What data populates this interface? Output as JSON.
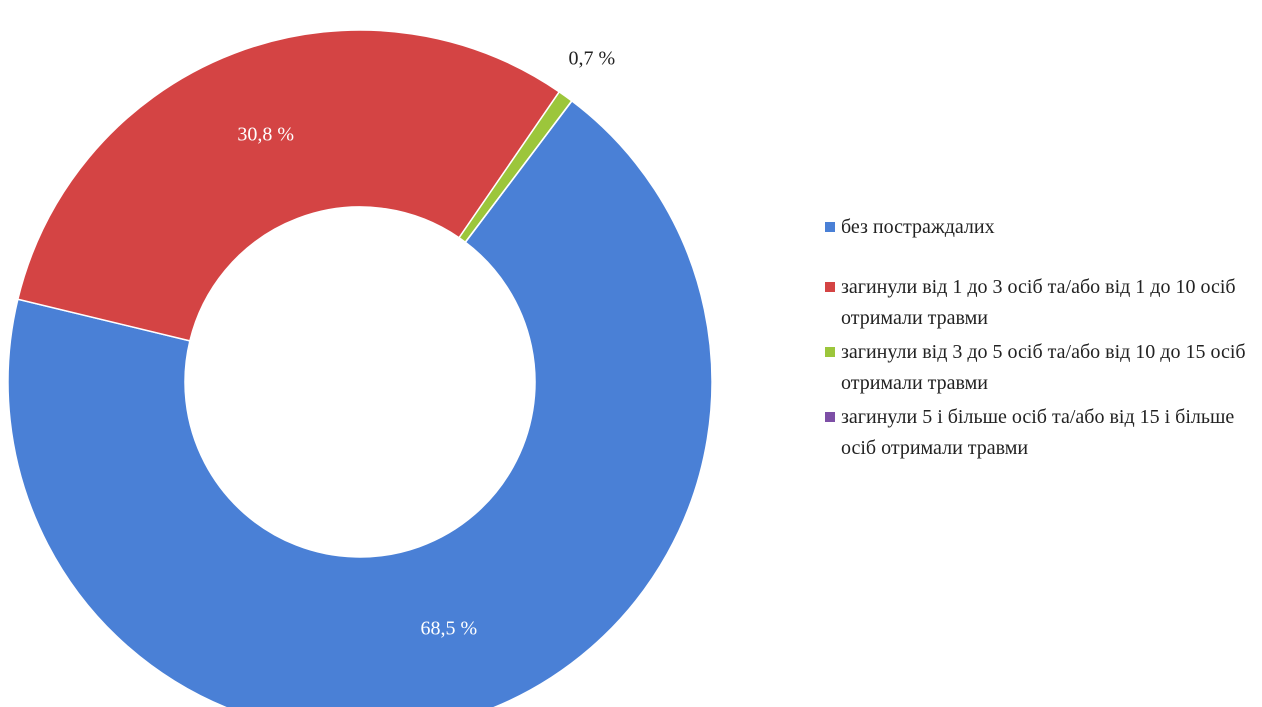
{
  "chart_data": {
    "type": "donut",
    "categories": [
      "без постраждалих",
      "загинули від 1 до 3 осіб та/або від 1 до 10 осіб отримали травми",
      "загинули від 3 до 5 осіб та/або від 10 до 15 осіб отримали травми",
      "загинули 5 і більше осіб та/або від 15 і більше осіб отримали травми"
    ],
    "values": [
      68.5,
      30.8,
      0.7,
      0
    ],
    "value_labels": [
      "68,5 %",
      "30,8 %",
      "0,7 %",
      null
    ],
    "colors": [
      "#4a80d6",
      "#d44444",
      "#9cc63b",
      "#7d4fa6"
    ],
    "legend": "right"
  }
}
